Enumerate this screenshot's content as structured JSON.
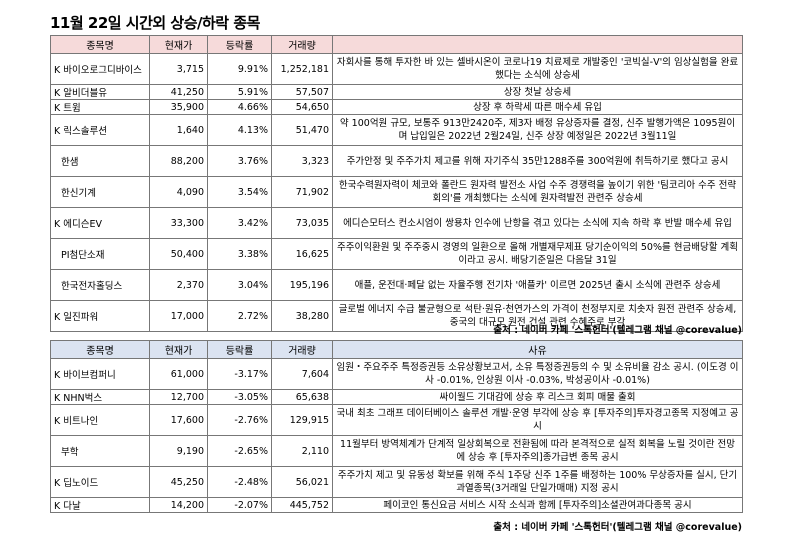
{
  "title": "11월 22일  시간외 상승/하락 종목",
  "up_table": {
    "headers": [
      "종목명",
      "현재가",
      "등락률",
      "거래량",
      ""
    ],
    "rows": [
      {
        "name": "K 바이오로그디바이스",
        "price": "3,715",
        "rate": "9.91%",
        "volume": "1,252,181",
        "reason": "자회사를 통해 투자한 바 있는 셀바시온이 코로나19 치료제로 개발중인 '코빅실-V'의 임상실험을 완료했다는 소식에 상승세"
      },
      {
        "name": "K 알비더블유",
        "price": "41,250",
        "rate": "5.91%",
        "volume": "57,507",
        "reason": "상장 첫날 상승세"
      },
      {
        "name": "K 트윔",
        "price": "35,900",
        "rate": "4.66%",
        "volume": "54,650",
        "reason": "상장 후 하락세 따른 매수세 유입"
      },
      {
        "name": "K 릭스솔루션",
        "price": "1,640",
        "rate": "4.13%",
        "volume": "51,470",
        "reason": "약 100억원 규모, 보통주 913만2420주, 제3자 배정 유상증자를 결정, 신주 발행가액은 1095원이며 납입일은 2022년 2월24일, 신주 상장 예정일은 2022년 3월11일"
      },
      {
        "name": "한샘",
        "price": "88,200",
        "rate": "3.76%",
        "volume": "3,323",
        "reason": "주가안정 및 주주가치 제고를 위해 자기주식 35만1288주를 300억원에 취득하기로 했다고 공시"
      },
      {
        "name": "한신기계",
        "price": "4,090",
        "rate": "3.54%",
        "volume": "71,902",
        "reason": "한국수력원자력이 체코와 폴란드 원자력 발전소 사업 수주 경쟁력을 높이기 위한 '팀코리아 수주 전략회의'를 개최했다는 소식에 원자력발전 관련주 상승세"
      },
      {
        "name": "K 에디슨EV",
        "price": "33,300",
        "rate": "3.42%",
        "volume": "73,035",
        "reason": "에디슨모터스 컨소시엄이 쌍용차 인수에 난항을 겪고 있다는 소식에 지속 하락 후 반발 매수세 유입"
      },
      {
        "name": "PI첨단소재",
        "price": "50,400",
        "rate": "3.38%",
        "volume": "16,625",
        "reason": "주주이익환원 및 주주중시 경영의 일환으로 올해 개별재무제표 당기순이익의 50%를 현금배당할 계획이라고 공시. 배당기준일은 다음달 31일"
      },
      {
        "name": "한국전자홀딩스",
        "price": "2,370",
        "rate": "3.04%",
        "volume": "195,196",
        "reason": "애플, 운전대·페달 없는 자율주행 전기차 '애플카' 이르면 2025년 출시 소식에 관련주 상승세"
      },
      {
        "name": "K 일진파워",
        "price": "17,000",
        "rate": "2.72%",
        "volume": "38,280",
        "reason": "글로벌 에너지 수급 불균형으로 석탄·원유·천연가스의 가격이 천정부지로 치솟자 원전 관련주 상승세, 중국의 대규모 원전 건설 관련 수혜주로 부각"
      }
    ]
  },
  "source_note": "출처 : 네이버 카페 '스톡헌터'(텔레그램 채널 @corevalue)",
  "down_table": {
    "headers": [
      "종목명",
      "현재가",
      "등락률",
      "거래량",
      "사유"
    ],
    "rows": [
      {
        "name": "K 바이브컴퍼니",
        "price": "61,000",
        "rate": "-3.17%",
        "volume": "7,604",
        "reason": "임원・주요주주 특정증권등 소유상황보고서, 소유 특정증권등의 수 및 소유비율 감소 공시. (이도경 이사 -0.01%, 인상원 이사 -0.03%, 박성공이사 -0.01%)"
      },
      {
        "name": "K NHN벅스",
        "price": "12,700",
        "rate": "-3.05%",
        "volume": "65,638",
        "reason": "싸이월드 기대감에 상승 후 리스크 회피 매물 출회"
      },
      {
        "name": "K 비트나인",
        "price": "17,600",
        "rate": "-2.76%",
        "volume": "129,915",
        "reason": "국내 최초 그래프 데이터베이스 솔루션 개발·운영 부각에 상승 후 [투자주의]투자경고종목 지정예고 공시"
      },
      {
        "name": "부학",
        "price": "9,190",
        "rate": "-2.65%",
        "volume": "2,110",
        "reason": "11월부터 방역체계가 단계적 일상회복으로 전환됨에 따라 본격적으로 실적 회복을 노릴 것이란 전망에 상승 후 [투자주의]종가급변 종목 공시"
      },
      {
        "name": "K 딥노이드",
        "price": "45,250",
        "rate": "-2.48%",
        "volume": "56,021",
        "reason": "주주가치 제고 및 유동성 확보를 위해 주식 1주당 신주 1주를 배정하는 100% 무상증자를 실시, 단기과열종목(3거래일 단일가매매) 지정 공시"
      },
      {
        "name": "K 다날",
        "price": "14,200",
        "rate": "-2.07%",
        "volume": "445,752",
        "reason": "페이코인 통신요금 서비스 시작 소식과 함께 [투자주의]소셜관여과다종목 공시"
      }
    ]
  },
  "source_note_2": "출처 : 네이버 카페 '스톡헌터'(텔레그램 채널 @corevalue)"
}
